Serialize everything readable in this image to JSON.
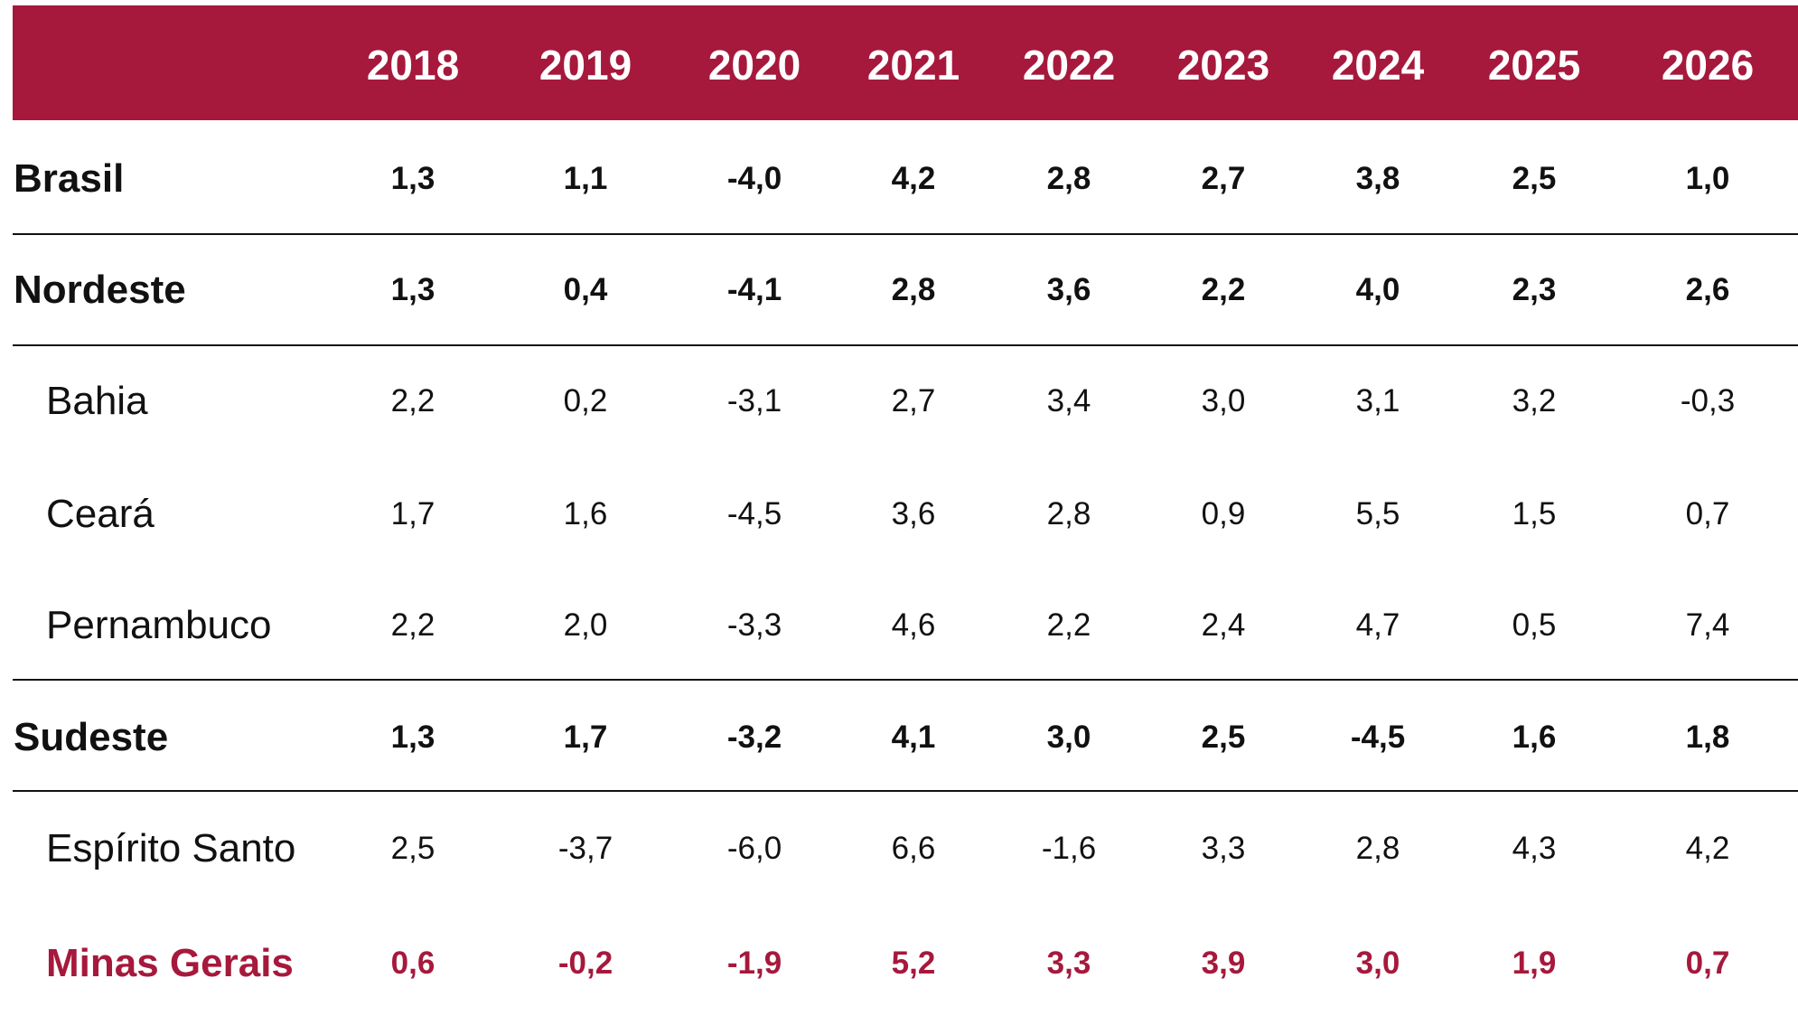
{
  "table": {
    "columns": [
      "2018",
      "2019",
      "2020",
      "2021",
      "2022",
      "2023",
      "2024",
      "2025",
      "2026"
    ],
    "rows": [
      {
        "label": "Brasil",
        "values": [
          "1,3",
          "1,1",
          "-4,0",
          "4,2",
          "2,8",
          "2,7",
          "3,8",
          "2,5",
          "1,0"
        ]
      },
      {
        "label": "Nordeste",
        "values": [
          "1,3",
          "0,4",
          "-4,1",
          "2,8",
          "3,6",
          "2,2",
          "4,0",
          "2,3",
          "2,6"
        ]
      },
      {
        "label": "Bahia",
        "values": [
          "2,2",
          "0,2",
          "-3,1",
          "2,7",
          "3,4",
          "3,0",
          "3,1",
          "3,2",
          "-0,3"
        ]
      },
      {
        "label": "Ceará",
        "values": [
          "1,7",
          "1,6",
          "-4,5",
          "3,6",
          "2,8",
          "0,9",
          "5,5",
          "1,5",
          "0,7"
        ]
      },
      {
        "label": "Pernambuco",
        "values": [
          "2,2",
          "2,0",
          "-3,3",
          "4,6",
          "2,2",
          "2,4",
          "4,7",
          "0,5",
          "7,4"
        ]
      },
      {
        "label": "Sudeste",
        "values": [
          "1,3",
          "1,7",
          "-3,2",
          "4,1",
          "3,0",
          "2,5",
          "-4,5",
          "1,6",
          "1,8"
        ]
      },
      {
        "label": "Espírito Santo",
        "values": [
          "2,5",
          "-3,7",
          "-6,0",
          "6,6",
          "-1,6",
          "3,3",
          "2,8",
          "4,3",
          "4,2"
        ]
      },
      {
        "label": "Minas Gerais",
        "values": [
          "0,6",
          "-0,2",
          "-1,9",
          "5,2",
          "3,3",
          "3,9",
          "3,0",
          "1,9",
          "0,7"
        ]
      }
    ]
  }
}
